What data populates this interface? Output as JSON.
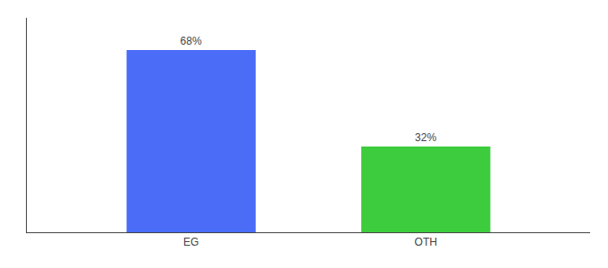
{
  "chart_data": {
    "type": "bar",
    "categories": [
      "EG",
      "OTH"
    ],
    "values": [
      68,
      32
    ],
    "value_labels": [
      "68%",
      "32%"
    ],
    "colors": [
      "#4a6cf7",
      "#3dcc3d"
    ],
    "ylim": [
      0,
      80
    ],
    "grid": false,
    "data_labels": true,
    "tick_labels": "x"
  }
}
